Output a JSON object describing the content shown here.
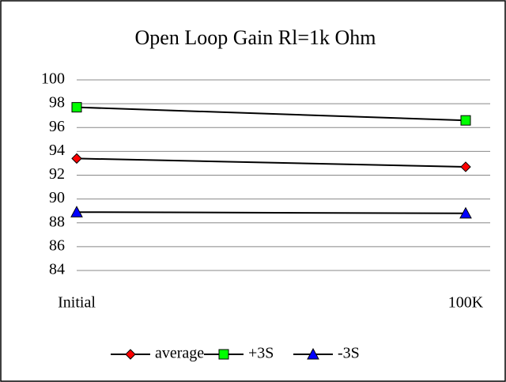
{
  "chart_data": {
    "type": "line",
    "title": "Open Loop Gain Rl=1k Ohm",
    "categories": [
      "Initial",
      "100K"
    ],
    "series": [
      {
        "name": "average",
        "color": "#ff0000",
        "marker": "diamond",
        "values": [
          93.4,
          92.7
        ]
      },
      {
        "name": "+3S",
        "color": "#00ff00",
        "marker": "square",
        "values": [
          97.7,
          96.6
        ]
      },
      {
        "name": "-3S",
        "color": "#0000ff",
        "marker": "triangle",
        "values": [
          88.9,
          88.8
        ]
      }
    ],
    "line_color": "#000000",
    "ylim": [
      84,
      100
    ],
    "yticks": [
      84,
      86,
      88,
      90,
      92,
      94,
      96,
      98,
      100
    ],
    "grid": true,
    "legend": "bottom"
  }
}
